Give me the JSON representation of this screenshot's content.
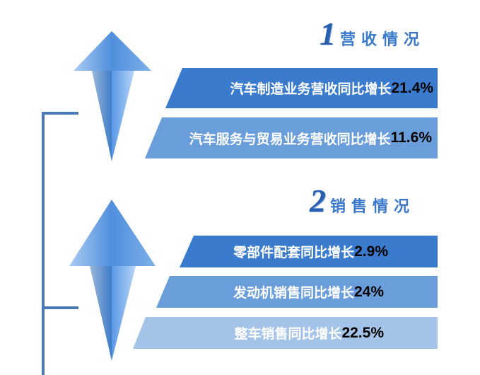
{
  "colors": {
    "dark_blue": "#3a7bcd",
    "mid_blue": "#6a9edb",
    "light_blue": "#a4c3e8",
    "line": "#4a7ab8",
    "percent": "#000000"
  },
  "section1": {
    "number": "1",
    "title": "营收情况",
    "items": [
      {
        "label": "汽车制造业务营收同比增长",
        "value": "21.4%"
      },
      {
        "label": "汽车服务与贸易业务营收同比增长",
        "value": "11.6%"
      }
    ]
  },
  "section2": {
    "number": "2",
    "title": "销售情况",
    "items": [
      {
        "label": "零部件配套同比增长",
        "value": "2.9%"
      },
      {
        "label": "发动机销售同比增长",
        "value": "24%"
      },
      {
        "label": "整车销售同比增长",
        "value": "22.5%"
      }
    ]
  },
  "icons": [
    "up-arrow-icon",
    "up-arrow-icon"
  ]
}
